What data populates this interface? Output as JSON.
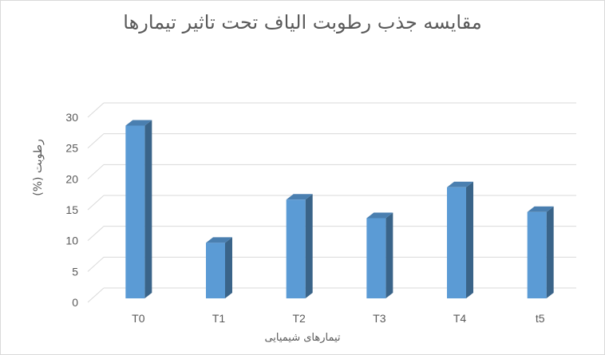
{
  "chart_data": {
    "type": "bar",
    "style": "3d-column",
    "title": "مقایسه جذب رطوبت الیاف تحت تاثیر تیمارها",
    "xlabel": "تیمارهای شیمیایی",
    "ylabel": "رطوبت (%)",
    "categories": [
      "T0",
      "T1",
      "T2",
      "T3",
      "T4",
      "t5"
    ],
    "values": [
      28,
      9,
      16,
      13,
      18,
      14
    ],
    "ylim": [
      0,
      30
    ],
    "yticks": [
      0,
      5,
      10,
      15,
      20,
      25,
      30
    ],
    "grid": true,
    "legend": "none",
    "colors": {
      "front": "#5b9bd5",
      "side": "#3a6489",
      "top": "#4a7fb0",
      "grid": "#d9d9d9"
    }
  }
}
